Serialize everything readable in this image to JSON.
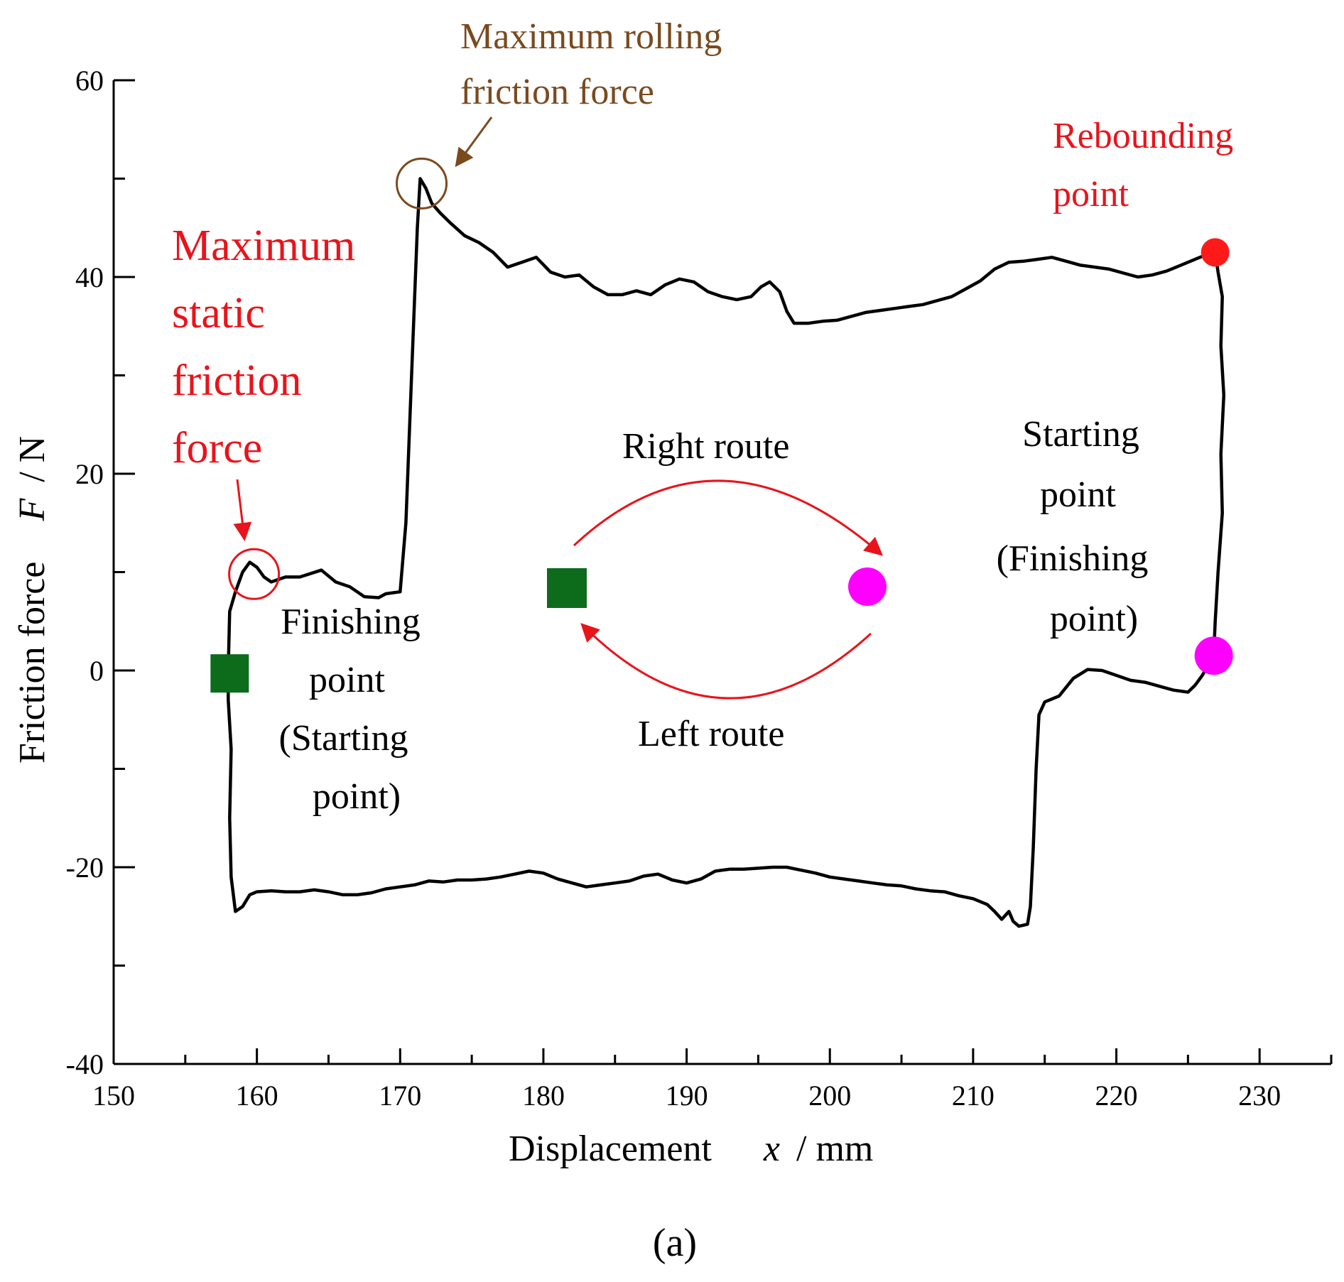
{
  "chart_data": {
    "type": "line",
    "x_axis": {
      "label": "Displacement",
      "var": "x",
      "unit": "/ mm",
      "range": [
        150,
        235
      ],
      "ticks": [
        150,
        160,
        170,
        180,
        190,
        200,
        210,
        220,
        230
      ]
    },
    "y_axis": {
      "label": "Friction force",
      "var": "F",
      "unit": "/ N",
      "range": [
        -40,
        60
      ],
      "ticks": [
        -40,
        -20,
        0,
        20,
        40,
        60
      ]
    },
    "series": [
      {
        "name": "friction loop",
        "color": "#000000",
        "points": [
          [
            158.0,
            0
          ],
          [
            158.1,
            6
          ],
          [
            158.5,
            8
          ],
          [
            159.0,
            10
          ],
          [
            159.5,
            11
          ],
          [
            160.0,
            10.5
          ],
          [
            160.5,
            9.5
          ],
          [
            161.0,
            9
          ],
          [
            162.0,
            9.5
          ],
          [
            163.0,
            9.5
          ],
          [
            164.5,
            10.2
          ],
          [
            165.5,
            9
          ],
          [
            166.5,
            8.5
          ],
          [
            167.5,
            7.5
          ],
          [
            168.5,
            7.4
          ],
          [
            169.0,
            7.8
          ],
          [
            170.0,
            8
          ],
          [
            170.4,
            15
          ],
          [
            170.8,
            30
          ],
          [
            171.2,
            45
          ],
          [
            171.4,
            50
          ],
          [
            171.8,
            49
          ],
          [
            172.2,
            47.5
          ],
          [
            172.8,
            46.5
          ],
          [
            173.5,
            45.5
          ],
          [
            174.5,
            44.2
          ],
          [
            175.5,
            43.5
          ],
          [
            176.5,
            42.5
          ],
          [
            177.5,
            41
          ],
          [
            178.5,
            41.5
          ],
          [
            179.5,
            42
          ],
          [
            180.5,
            40.5
          ],
          [
            181.5,
            40
          ],
          [
            182.5,
            40.2
          ],
          [
            183.5,
            39
          ],
          [
            184.5,
            38.2
          ],
          [
            185.5,
            38.2
          ],
          [
            186.5,
            38.6
          ],
          [
            187.5,
            38.2
          ],
          [
            188.5,
            39.2
          ],
          [
            189.5,
            39.8
          ],
          [
            190.5,
            39.5
          ],
          [
            191.5,
            38.5
          ],
          [
            192.5,
            38
          ],
          [
            193.5,
            37.7
          ],
          [
            194.5,
            38
          ],
          [
            195.2,
            39
          ],
          [
            195.8,
            39.5
          ],
          [
            196.5,
            38.5
          ],
          [
            197.0,
            36.5
          ],
          [
            197.5,
            35.3
          ],
          [
            198.5,
            35.3
          ],
          [
            199.5,
            35.5
          ],
          [
            200.5,
            35.6
          ],
          [
            201.5,
            36.0
          ],
          [
            202.5,
            36.4
          ],
          [
            203.5,
            36.6
          ],
          [
            204.5,
            36.8
          ],
          [
            205.5,
            37.0
          ],
          [
            206.5,
            37.2
          ],
          [
            207.5,
            37.6
          ],
          [
            208.5,
            38.0
          ],
          [
            209.5,
            38.8
          ],
          [
            210.5,
            39.6
          ],
          [
            211.5,
            40.8
          ],
          [
            212.5,
            41.5
          ],
          [
            213.5,
            41.6
          ],
          [
            214.5,
            41.8
          ],
          [
            215.5,
            42.0
          ],
          [
            216.5,
            41.6
          ],
          [
            217.5,
            41.2
          ],
          [
            218.5,
            41.0
          ],
          [
            219.5,
            40.8
          ],
          [
            220.5,
            40.4
          ],
          [
            221.5,
            40.0
          ],
          [
            222.5,
            40.2
          ],
          [
            223.5,
            40.6
          ],
          [
            224.5,
            41.2
          ],
          [
            225.5,
            41.8
          ],
          [
            226.5,
            42.4
          ],
          [
            226.9,
            42.5
          ],
          [
            227.1,
            40.5
          ],
          [
            227.4,
            38
          ],
          [
            227.3,
            33
          ],
          [
            227.5,
            28
          ],
          [
            227.3,
            22
          ],
          [
            227.4,
            16
          ],
          [
            227.1,
            10
          ],
          [
            226.9,
            5
          ],
          [
            226.8,
            1.5
          ],
          [
            226.4,
            0.5
          ],
          [
            226.0,
            -0.5
          ],
          [
            225.5,
            -1.5
          ],
          [
            225.0,
            -2.2
          ],
          [
            224.0,
            -2.0
          ],
          [
            223.0,
            -1.6
          ],
          [
            222.0,
            -1.2
          ],
          [
            221.0,
            -1.0
          ],
          [
            220.0,
            -0.5
          ],
          [
            219.0,
            0.0
          ],
          [
            218.0,
            0.1
          ],
          [
            217.0,
            -0.8
          ],
          [
            216.0,
            -2.6
          ],
          [
            215.0,
            -3.2
          ],
          [
            214.6,
            -4.5
          ],
          [
            214.4,
            -10
          ],
          [
            214.2,
            -18
          ],
          [
            214.0,
            -24
          ],
          [
            213.8,
            -25.8
          ],
          [
            213.2,
            -26.0
          ],
          [
            212.8,
            -25.5
          ],
          [
            212.5,
            -24.5
          ],
          [
            212.0,
            -25.3
          ],
          [
            211.5,
            -24.5
          ],
          [
            211.0,
            -23.8
          ],
          [
            210.0,
            -23.2
          ],
          [
            209.0,
            -22.9
          ],
          [
            208.0,
            -22.5
          ],
          [
            207.0,
            -22.4
          ],
          [
            206.0,
            -22.2
          ],
          [
            205.0,
            -21.9
          ],
          [
            204.0,
            -21.8
          ],
          [
            203.0,
            -21.6
          ],
          [
            202.0,
            -21.4
          ],
          [
            201.0,
            -21.2
          ],
          [
            200.0,
            -21.0
          ],
          [
            199.0,
            -20.6
          ],
          [
            198.0,
            -20.3
          ],
          [
            197.0,
            -20.0
          ],
          [
            196.0,
            -20.0
          ],
          [
            195.0,
            -20.1
          ],
          [
            194.0,
            -20.2
          ],
          [
            193.0,
            -20.2
          ],
          [
            192.0,
            -20.4
          ],
          [
            191.0,
            -21.2
          ],
          [
            190.0,
            -21.6
          ],
          [
            189.0,
            -21.3
          ],
          [
            188.0,
            -20.7
          ],
          [
            187.0,
            -20.9
          ],
          [
            186.0,
            -21.4
          ],
          [
            185.0,
            -21.6
          ],
          [
            184.0,
            -21.8
          ],
          [
            183.0,
            -22.0
          ],
          [
            182.0,
            -21.6
          ],
          [
            181.0,
            -21.2
          ],
          [
            180.0,
            -20.6
          ],
          [
            179.0,
            -20.4
          ],
          [
            178.0,
            -20.7
          ],
          [
            177.0,
            -21.0
          ],
          [
            176.0,
            -21.2
          ],
          [
            175.0,
            -21.3
          ],
          [
            174.0,
            -21.3
          ],
          [
            173.0,
            -21.5
          ],
          [
            172.0,
            -21.4
          ],
          [
            171.0,
            -21.8
          ],
          [
            170.0,
            -22.0
          ],
          [
            169.0,
            -22.2
          ],
          [
            168.0,
            -22.6
          ],
          [
            167.0,
            -22.8
          ],
          [
            166.0,
            -22.8
          ],
          [
            165.0,
            -22.5
          ],
          [
            164.0,
            -22.3
          ],
          [
            163.0,
            -22.5
          ],
          [
            162.0,
            -22.5
          ],
          [
            161.0,
            -22.4
          ],
          [
            160.0,
            -22.5
          ],
          [
            159.5,
            -22.8
          ],
          [
            159.0,
            -24.0
          ],
          [
            158.5,
            -24.5
          ],
          [
            158.2,
            -21
          ],
          [
            158.1,
            -15
          ],
          [
            158.2,
            -8
          ],
          [
            158.0,
            -3
          ],
          [
            158.0,
            0
          ]
        ]
      }
    ],
    "markers": [
      {
        "name": "finishing-square",
        "shape": "square",
        "color": "#0d6b1c",
        "x": 158.1,
        "y": -0.3
      },
      {
        "name": "rebounding-dot",
        "shape": "circle",
        "color": "#ff1a1a",
        "x": 226.9,
        "y": 42.5
      },
      {
        "name": "starting-dot",
        "shape": "circle",
        "color": "#ff00ff",
        "x": 226.8,
        "y": 1.5
      }
    ],
    "highlight_circles": [
      {
        "name": "max-static-circle",
        "color": "#e8141b",
        "x": 159.8,
        "y": 9.8
      },
      {
        "name": "max-rolling-circle",
        "color": "#7a4a1e",
        "x": 171.5,
        "y": 49.5
      }
    ],
    "annotations": {
      "max_rolling": [
        "Maximum rolling",
        "friction force"
      ],
      "max_static": [
        "Maximum",
        "static",
        "friction",
        "force"
      ],
      "rebounding": [
        "Rebounding",
        "point"
      ],
      "finishing": [
        "Finishing",
        "point",
        "(Starting",
        "point)"
      ],
      "starting": [
        "Starting",
        "point",
        "(Finishing",
        "point)"
      ],
      "right_route": "Right route",
      "left_route": "Left route"
    },
    "caption": "(a)"
  }
}
